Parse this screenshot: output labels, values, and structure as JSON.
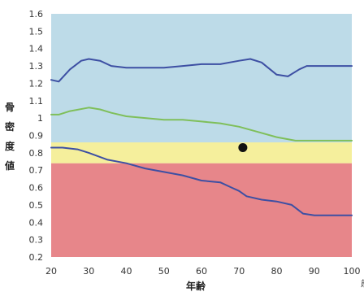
{
  "chart_data": {
    "type": "line",
    "xlabel": "年齢",
    "ylabel_chars": [
      "骨",
      "密",
      "度",
      "値"
    ],
    "xlim": [
      20,
      100
    ],
    "ylim": [
      0.2,
      1.6
    ],
    "xticks": [
      "20",
      "30",
      "40",
      "50",
      "60",
      "70",
      "80",
      "90",
      "100"
    ],
    "yticks": [
      "1.6",
      "1.5",
      "1.4",
      "1.3",
      "1.2",
      "1.1",
      "1",
      "0.9",
      "0.8",
      "0.7",
      "0.6",
      "0.5",
      "0.4",
      "0.3",
      "0.2"
    ],
    "x_truncated_char": "歳",
    "bands": [
      {
        "from": 0.2,
        "to": 0.74,
        "color": "#e7868a"
      },
      {
        "from": 0.74,
        "to": 0.86,
        "color": "#f5ef9c"
      },
      {
        "from": 0.86,
        "to": 1.6,
        "color": "#bddbe8"
      }
    ],
    "series": [
      {
        "color": "#3d4fa3",
        "x": [
          20,
          22,
          25,
          28,
          30,
          33,
          36,
          40,
          45,
          50,
          55,
          60,
          65,
          70,
          73,
          76,
          80,
          83,
          86,
          88,
          90,
          95,
          100
        ],
        "y": [
          1.22,
          1.21,
          1.28,
          1.33,
          1.34,
          1.33,
          1.3,
          1.29,
          1.29,
          1.29,
          1.3,
          1.31,
          1.31,
          1.33,
          1.34,
          1.32,
          1.25,
          1.24,
          1.28,
          1.3,
          1.3,
          1.3,
          1.3
        ]
      },
      {
        "color": "#7fbf5a",
        "x": [
          20,
          22,
          25,
          30,
          33,
          36,
          40,
          45,
          50,
          55,
          60,
          65,
          70,
          75,
          80,
          85,
          90,
          95,
          100
        ],
        "y": [
          1.02,
          1.02,
          1.04,
          1.06,
          1.05,
          1.03,
          1.01,
          1.0,
          0.99,
          0.99,
          0.98,
          0.97,
          0.95,
          0.92,
          0.89,
          0.87,
          0.87,
          0.87,
          0.87
        ]
      },
      {
        "color": "#3d4fa3",
        "x": [
          20,
          23,
          27,
          30,
          35,
          40,
          45,
          50,
          55,
          60,
          65,
          68,
          70,
          72,
          76,
          80,
          84,
          87,
          90,
          95,
          100
        ],
        "y": [
          0.83,
          0.83,
          0.82,
          0.8,
          0.76,
          0.74,
          0.71,
          0.69,
          0.67,
          0.64,
          0.63,
          0.6,
          0.58,
          0.55,
          0.53,
          0.52,
          0.5,
          0.45,
          0.44,
          0.44,
          0.44
        ]
      }
    ],
    "points": [
      {
        "x": 71,
        "y": 0.83,
        "color": "#111111"
      }
    ]
  }
}
